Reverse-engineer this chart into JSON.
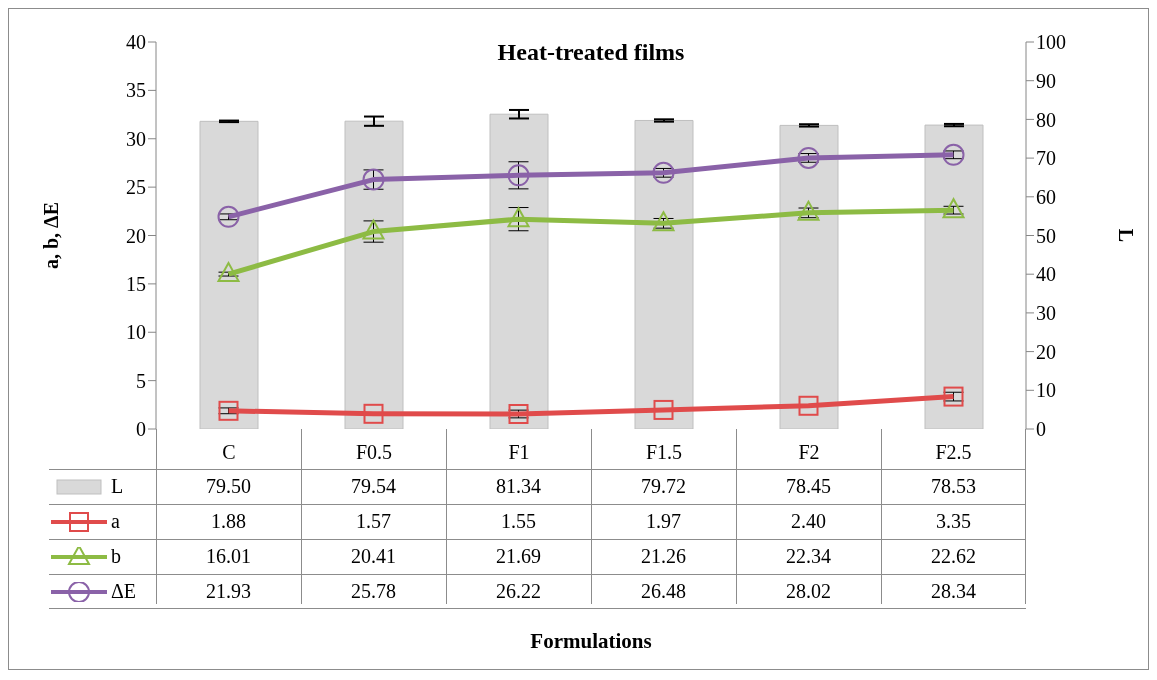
{
  "chart_data": {
    "type": "line",
    "title": "Heat-treated films",
    "ylabel": "a, b, ΔE",
    "y2label": "L",
    "annotations": [
      "Formulations"
    ],
    "categories": [
      "C",
      "F0.5",
      "F1",
      "F1.5",
      "F2",
      "F2.5"
    ],
    "series": [
      {
        "name": "L",
        "type": "bar",
        "axis": "y2",
        "color": "#d9d9d9",
        "values": [
          79.5,
          79.54,
          81.34,
          79.72,
          78.45,
          78.53
        ],
        "errors": [
          0.2,
          1.2,
          1.1,
          0.3,
          0.3,
          0.3
        ],
        "value_labels": [
          "79.50",
          "79.54",
          "81.34",
          "79.72",
          "78.45",
          "78.53"
        ]
      },
      {
        "name": "a",
        "marker": "square",
        "color": "#e04b4b",
        "values": [
          1.88,
          1.57,
          1.55,
          1.97,
          2.4,
          3.35
        ],
        "errors": [
          0.3,
          null,
          0.4,
          null,
          null,
          0.45
        ],
        "value_labels": [
          "1.88",
          "1.57",
          "1.55",
          "1.97",
          "2.40",
          "3.35"
        ]
      },
      {
        "name": "b",
        "marker": "triangle",
        "color": "#8dbb44",
        "values": [
          16.01,
          20.41,
          21.69,
          21.26,
          22.34,
          22.62
        ],
        "errors": [
          0.2,
          1.1,
          1.2,
          0.5,
          0.5,
          0.4
        ],
        "value_labels": [
          "16.01",
          "20.41",
          "21.69",
          "21.26",
          "22.34",
          "22.62"
        ]
      },
      {
        "name": "ΔE",
        "marker": "circle",
        "color": "#8a62a8",
        "values": [
          21.93,
          25.78,
          26.22,
          26.48,
          28.02,
          28.34
        ],
        "errors": [
          0.3,
          1.0,
          1.4,
          0.45,
          0.45,
          0.4
        ],
        "value_labels": [
          "21.93",
          "25.78",
          "26.22",
          "26.48",
          "28.02",
          "28.34"
        ]
      }
    ],
    "ylim": [
      0,
      40
    ],
    "yticks": [
      0,
      5,
      10,
      15,
      20,
      25,
      30,
      35,
      40
    ],
    "y2lim": [
      0,
      100
    ],
    "y2ticks": [
      0,
      10,
      20,
      30,
      40,
      50,
      60,
      70,
      80,
      90,
      100
    ],
    "legend": "bottom",
    "line_style": "solid"
  }
}
